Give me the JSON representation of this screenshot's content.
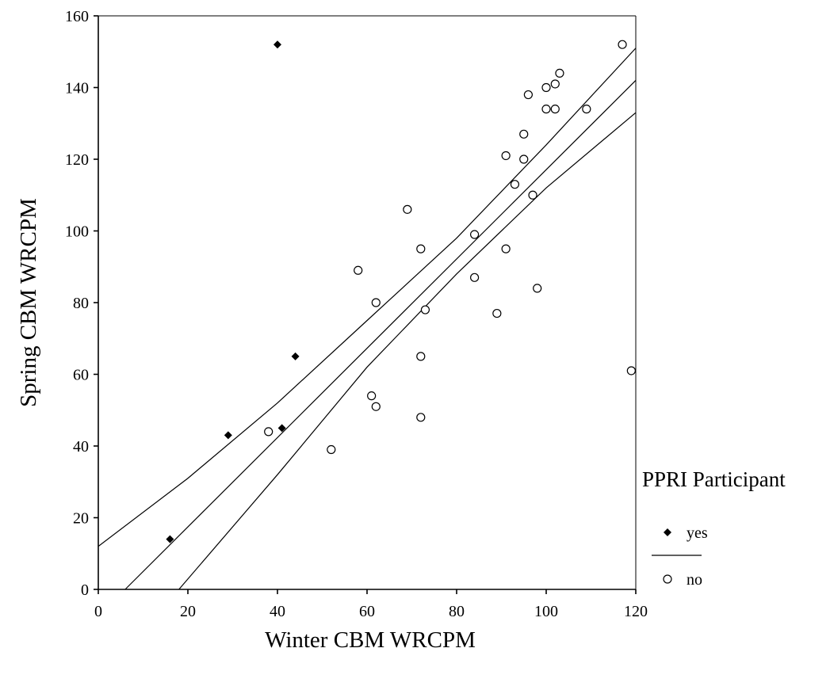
{
  "chart_data": {
    "type": "scatter",
    "title": "",
    "xlabel": "Winter CBM WRCPM",
    "ylabel": "Spring CBM WRCPM",
    "xlim": [
      0,
      120
    ],
    "ylim": [
      0,
      160
    ],
    "x_ticks": [
      0,
      20,
      40,
      60,
      80,
      100,
      120
    ],
    "y_ticks": [
      0,
      20,
      40,
      60,
      80,
      100,
      120,
      140,
      160
    ],
    "x_tick_labels": [
      "0",
      "20",
      "40",
      "60",
      "80",
      "100",
      "120"
    ],
    "y_tick_labels": [
      "0",
      "20",
      "40",
      "60",
      "80",
      "100",
      "120",
      "140",
      "160"
    ],
    "grid": false,
    "legend": {
      "title": "PPRI Participant",
      "placement": "right",
      "entries": [
        "yes",
        "no"
      ]
    },
    "series": [
      {
        "name": "yes",
        "marker": "filled-diamond",
        "points": [
          {
            "x": 16,
            "y": 14
          },
          {
            "x": 29,
            "y": 43
          },
          {
            "x": 40,
            "y": 152
          },
          {
            "x": 41,
            "y": 45
          },
          {
            "x": 44,
            "y": 65
          }
        ]
      },
      {
        "name": "no",
        "marker": "open-circle",
        "points": [
          {
            "x": 38,
            "y": 44
          },
          {
            "x": 52,
            "y": 39
          },
          {
            "x": 58,
            "y": 89
          },
          {
            "x": 61,
            "y": 54
          },
          {
            "x": 62,
            "y": 51
          },
          {
            "x": 62,
            "y": 80
          },
          {
            "x": 69,
            "y": 106
          },
          {
            "x": 72,
            "y": 95
          },
          {
            "x": 72,
            "y": 65
          },
          {
            "x": 72,
            "y": 48
          },
          {
            "x": 73,
            "y": 78
          },
          {
            "x": 84,
            "y": 99
          },
          {
            "x": 84,
            "y": 87
          },
          {
            "x": 89,
            "y": 77
          },
          {
            "x": 91,
            "y": 121
          },
          {
            "x": 91,
            "y": 95
          },
          {
            "x": 93,
            "y": 113
          },
          {
            "x": 95,
            "y": 127
          },
          {
            "x": 95,
            "y": 120
          },
          {
            "x": 96,
            "y": 138
          },
          {
            "x": 97,
            "y": 110
          },
          {
            "x": 98,
            "y": 84
          },
          {
            "x": 100,
            "y": 140
          },
          {
            "x": 100,
            "y": 134
          },
          {
            "x": 102,
            "y": 141
          },
          {
            "x": 102,
            "y": 134
          },
          {
            "x": 103,
            "y": 144
          },
          {
            "x": 109,
            "y": 134
          },
          {
            "x": 117,
            "y": 152
          },
          {
            "x": 119,
            "y": 61
          }
        ]
      }
    ],
    "fit_lines": {
      "regression": [
        {
          "x": 6,
          "y": 0
        },
        {
          "x": 120,
          "y": 142
        }
      ],
      "upper_band": [
        {
          "x": 0,
          "y": 12
        },
        {
          "x": 20,
          "y": 31
        },
        {
          "x": 40,
          "y": 52
        },
        {
          "x": 60,
          "y": 75
        },
        {
          "x": 80,
          "y": 98
        },
        {
          "x": 100,
          "y": 124
        },
        {
          "x": 120,
          "y": 151
        }
      ],
      "lower_band": [
        {
          "x": 18,
          "y": 0
        },
        {
          "x": 40,
          "y": 32
        },
        {
          "x": 60,
          "y": 62
        },
        {
          "x": 80,
          "y": 88
        },
        {
          "x": 100,
          "y": 112
        },
        {
          "x": 120,
          "y": 133
        }
      ]
    },
    "colors": {
      "marker": "#000000",
      "line": "#000000",
      "background": "#ffffff"
    }
  }
}
